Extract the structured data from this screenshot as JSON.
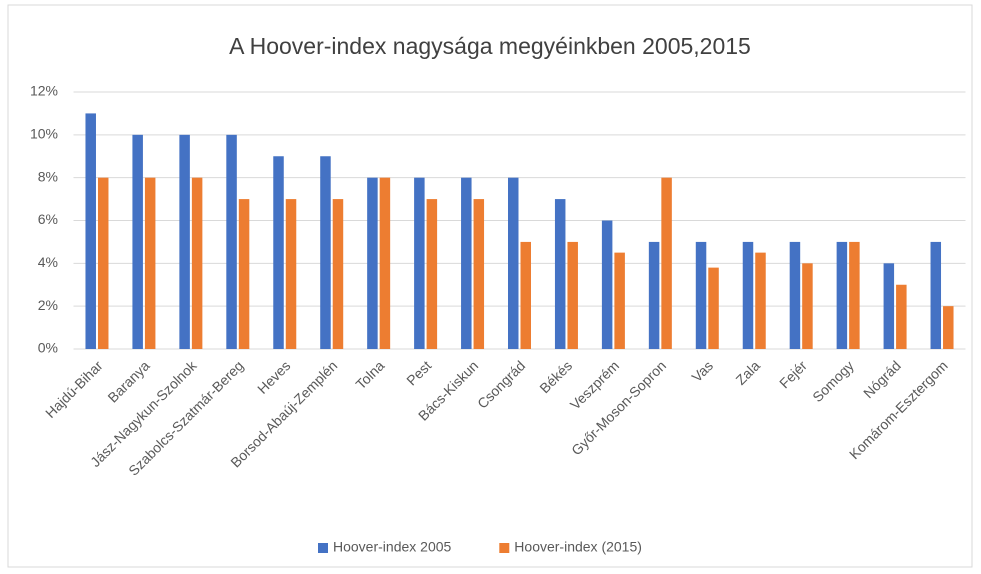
{
  "chart_data": {
    "type": "bar",
    "title": "A Hoover-index nagysága megyéinkben 2005,2015",
    "categories": [
      "Hajdú-Bihar",
      "Baranya",
      "Jász-Nagykun-Szolnok",
      "Szabolcs-Szatmár-Bereg",
      "Heves",
      "Borsod-Abaúj-Zemplén",
      "Tolna",
      "Pest",
      "Bács-Kiskun",
      "Csongrád",
      "Békés",
      "Veszprém",
      "Győr-Moson-Sopron",
      "Vas",
      "Zala",
      "Fejér",
      "Somogy",
      "Nógrád",
      "Komárom-Esztergom"
    ],
    "series": [
      {
        "name": "Hoover-index 2005",
        "color": "#4472c4",
        "values": [
          11,
          10,
          10,
          10,
          9,
          9,
          8,
          8,
          8,
          8,
          7,
          6,
          5,
          5,
          5,
          5,
          5,
          4,
          5
        ]
      },
      {
        "name": "Hoover-index (2015)",
        "color": "#ed7d31",
        "values": [
          8,
          8,
          8,
          7,
          7,
          7,
          8,
          7,
          7,
          5,
          5,
          4.5,
          8,
          3.8,
          4.5,
          4,
          5,
          3,
          2
        ]
      }
    ],
    "ylim": [
      0,
      12
    ],
    "yticks": [
      {
        "value": 0,
        "label": "0%"
      },
      {
        "value": 2,
        "label": "2%"
      },
      {
        "value": 4,
        "label": "4%"
      },
      {
        "value": 6,
        "label": "6%"
      },
      {
        "value": 8,
        "label": "8%"
      },
      {
        "value": 10,
        "label": "10%"
      },
      {
        "value": 12,
        "label": "12%"
      }
    ],
    "grid": true,
    "legend": "bottom"
  }
}
